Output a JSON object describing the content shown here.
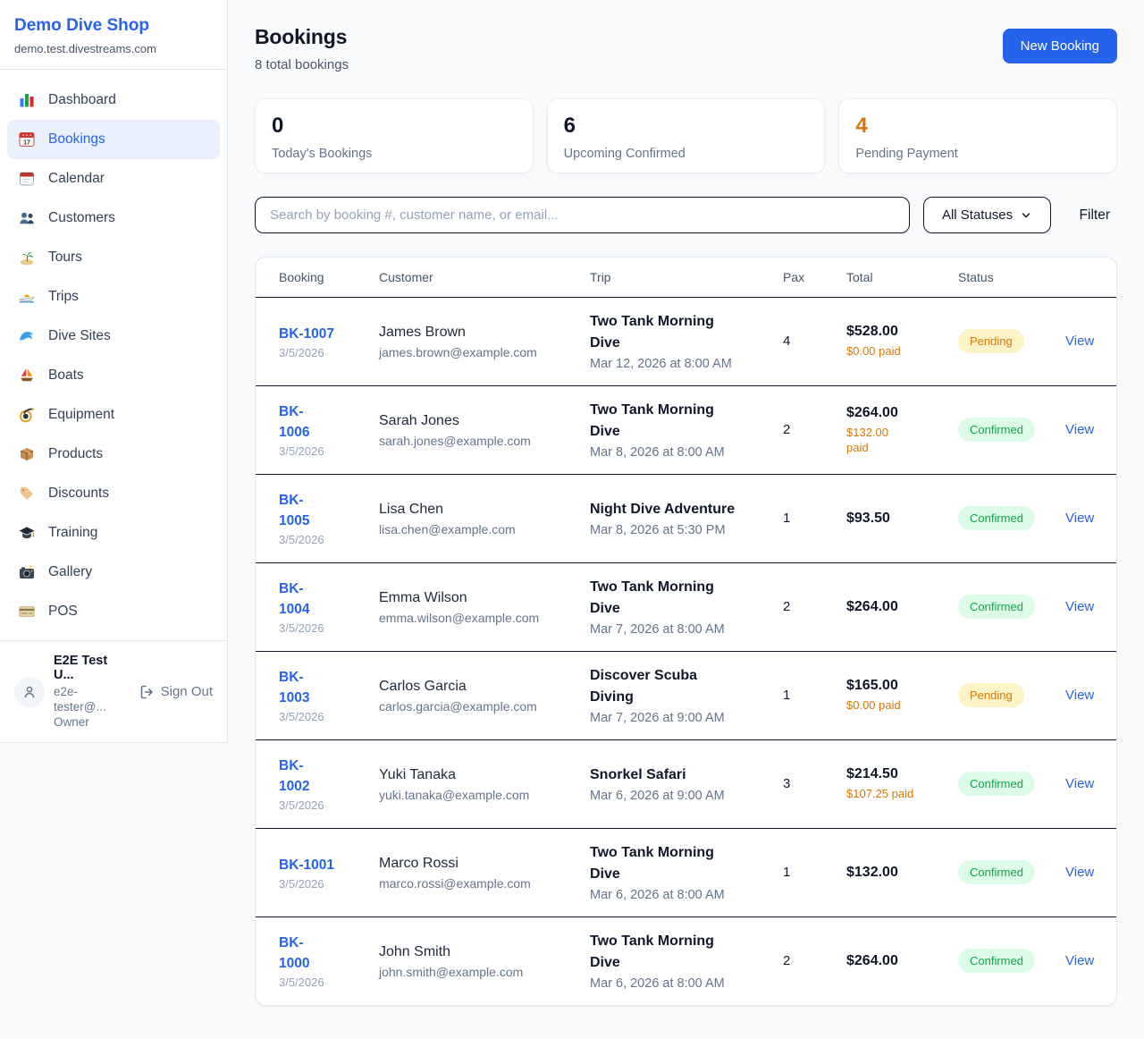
{
  "sidebar": {
    "brand": {
      "name": "Demo Dive Shop",
      "domain": "demo.test.divestreams.com"
    },
    "items": [
      {
        "label": "Dashboard",
        "icon": "bar-chart",
        "active": false
      },
      {
        "label": "Bookings",
        "icon": "calendar-17",
        "active": true
      },
      {
        "label": "Calendar",
        "icon": "calendar",
        "active": false
      },
      {
        "label": "Customers",
        "icon": "people",
        "active": false
      },
      {
        "label": "Tours",
        "icon": "island",
        "active": false
      },
      {
        "label": "Trips",
        "icon": "speedboat",
        "active": false
      },
      {
        "label": "Dive Sites",
        "icon": "wave",
        "active": false
      },
      {
        "label": "Boats",
        "icon": "sailboat",
        "active": false
      },
      {
        "label": "Equipment",
        "icon": "dive-mask",
        "active": false
      },
      {
        "label": "Products",
        "icon": "package",
        "active": false
      },
      {
        "label": "Discounts",
        "icon": "tag",
        "active": false
      },
      {
        "label": "Training",
        "icon": "graduation-cap",
        "active": false
      },
      {
        "label": "Gallery",
        "icon": "camera",
        "active": false
      },
      {
        "label": "POS",
        "icon": "credit-card",
        "active": false
      }
    ],
    "user": {
      "name": "E2E Test U...",
      "email": "e2e-tester@...",
      "role": "Owner",
      "sign_out_label": "Sign Out"
    }
  },
  "header": {
    "title": "Bookings",
    "subtitle": "8 total bookings",
    "new_booking_label": "New Booking"
  },
  "stats": [
    {
      "value": "0",
      "label": "Today's Bookings",
      "value_color": "#0f172a"
    },
    {
      "value": "6",
      "label": "Upcoming Confirmed",
      "value_color": "#0f172a"
    },
    {
      "value": "4",
      "label": "Pending Payment",
      "value_color": "#d97706"
    }
  ],
  "filters": {
    "search_placeholder": "Search by booking #, customer name, or email...",
    "status_selected": "All Statuses",
    "filter_label": "Filter"
  },
  "table": {
    "columns": [
      "Booking",
      "Customer",
      "Trip",
      "Pax",
      "Total",
      "Status"
    ],
    "view_label": "View",
    "rows": [
      {
        "id": "BK-1007",
        "date": "3/5/2026",
        "customer": "James Brown",
        "email": "james.brown@example.com",
        "trip": "Two Tank Morning\nDive",
        "datetime": "Mar 12, 2026 at 8:00 AM",
        "pax": "4",
        "total": "$528.00",
        "paid": "$0.00 paid",
        "status": "Pending"
      },
      {
        "id": "BK-\n1006",
        "date": "3/5/2026",
        "customer": "Sarah Jones",
        "email": "sarah.jones@example.com",
        "trip": "Two Tank Morning\nDive",
        "datetime": "Mar 8, 2026 at 8:00 AM",
        "pax": "2",
        "total": "$264.00",
        "paid": "$132.00\npaid",
        "status": "Confirmed"
      },
      {
        "id": "BK-\n1005",
        "date": "3/5/2026",
        "customer": "Lisa Chen",
        "email": "lisa.chen@example.com",
        "trip": "Night Dive Adventure",
        "datetime": "Mar 8, 2026 at 5:30 PM",
        "pax": "1",
        "total": "$93.50",
        "paid": "",
        "status": "Confirmed"
      },
      {
        "id": "BK-\n1004",
        "date": "3/5/2026",
        "customer": "Emma Wilson",
        "email": "emma.wilson@example.com",
        "trip": "Two Tank Morning\nDive",
        "datetime": "Mar 7, 2026 at 8:00 AM",
        "pax": "2",
        "total": "$264.00",
        "paid": "",
        "status": "Confirmed"
      },
      {
        "id": "BK-\n1003",
        "date": "3/5/2026",
        "customer": "Carlos Garcia",
        "email": "carlos.garcia@example.com",
        "trip": "Discover Scuba\nDiving",
        "datetime": "Mar 7, 2026 at 9:00 AM",
        "pax": "1",
        "total": "$165.00",
        "paid": "$0.00 paid",
        "status": "Pending"
      },
      {
        "id": "BK-\n1002",
        "date": "3/5/2026",
        "customer": "Yuki Tanaka",
        "email": "yuki.tanaka@example.com",
        "trip": "Snorkel Safari",
        "datetime": "Mar 6, 2026 at 9:00 AM",
        "pax": "3",
        "total": "$214.50",
        "paid": "$107.25 paid",
        "status": "Confirmed"
      },
      {
        "id": "BK-1001",
        "date": "3/5/2026",
        "customer": "Marco Rossi",
        "email": "marco.rossi@example.com",
        "trip": "Two Tank Morning\nDive",
        "datetime": "Mar 6, 2026 at 8:00 AM",
        "pax": "1",
        "total": "$132.00",
        "paid": "",
        "status": "Confirmed"
      },
      {
        "id": "BK-\n1000",
        "date": "3/5/2026",
        "customer": "John Smith",
        "email": "john.smith@example.com",
        "trip": "Two Tank Morning\nDive",
        "datetime": "Mar 6, 2026 at 8:00 AM",
        "pax": "2",
        "total": "$264.00",
        "paid": "",
        "status": "Confirmed"
      }
    ]
  },
  "colors": {
    "accent_blue": "#2563eb",
    "pending_text": "#d97706",
    "pending_bg": "#fef3c7",
    "confirmed_text": "#16a34a",
    "confirmed_bg": "#dcfce7",
    "page_bg": "#f8fafc"
  }
}
